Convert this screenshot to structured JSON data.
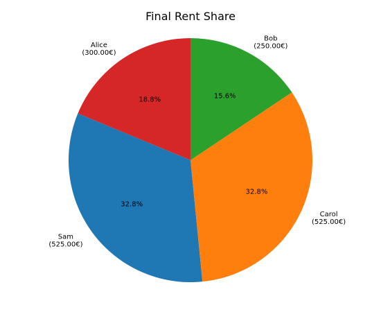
{
  "chart_data": {
    "type": "pie",
    "title": "Final Rent Share",
    "start_angle_deg": 90,
    "direction": "counterclockwise",
    "slices": [
      {
        "name": "Alice",
        "amount": "(300.00€)",
        "value": 300,
        "percent_label": "18.8%",
        "color": "#d62728"
      },
      {
        "name": "Sam",
        "amount": "(525.00€)",
        "value": 525,
        "percent_label": "32.8%",
        "color": "#1f77b4"
      },
      {
        "name": "Carol",
        "amount": "(525.00€)",
        "value": 525,
        "percent_label": "32.8%",
        "color": "#ff7f0e"
      },
      {
        "name": "Bob",
        "amount": "(250.00€)",
        "value": 250,
        "percent_label": "15.6%",
        "color": "#2ca02c"
      }
    ]
  }
}
